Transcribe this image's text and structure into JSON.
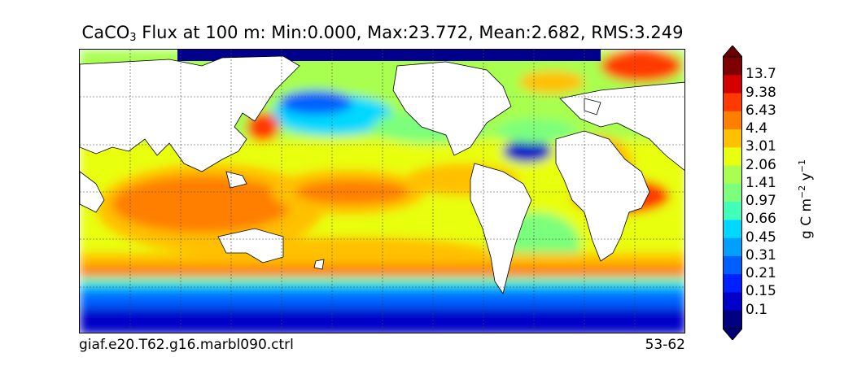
{
  "title": {
    "prefix": "CaCO",
    "subscript": "3",
    "rest": " Flux at 100 m: Min:0.000, Max:23.772, Mean:2.682, RMS:3.249"
  },
  "footer": {
    "case_name": "giaf.e20.T62.g16.marbl090.ctrl",
    "years": "53-62"
  },
  "colorbar": {
    "units_prefix": "g C m",
    "units_exp1": "−2",
    "units_mid": " y",
    "units_exp2": "−1",
    "ticks": [
      "13.7",
      "9.38",
      "6.43",
      "4.4",
      "3.01",
      "2.06",
      "1.41",
      "0.97",
      "0.66",
      "0.45",
      "0.31",
      "0.21",
      "0.15",
      "0.1"
    ],
    "colors": [
      "#7f0000",
      "#d40000",
      "#ff3a00",
      "#ff7f00",
      "#ffc000",
      "#e8ff10",
      "#a8ff50",
      "#7bff7c",
      "#40ffb8",
      "#00d8ff",
      "#00a0ff",
      "#0060ff",
      "#0020ff",
      "#0000c8",
      "#000080"
    ],
    "min_color": "#00007a",
    "max_color": "#6b0000"
  },
  "map": {
    "land_color": "#ffffff",
    "ice_color": "#00008c",
    "grid": "dashed"
  }
}
